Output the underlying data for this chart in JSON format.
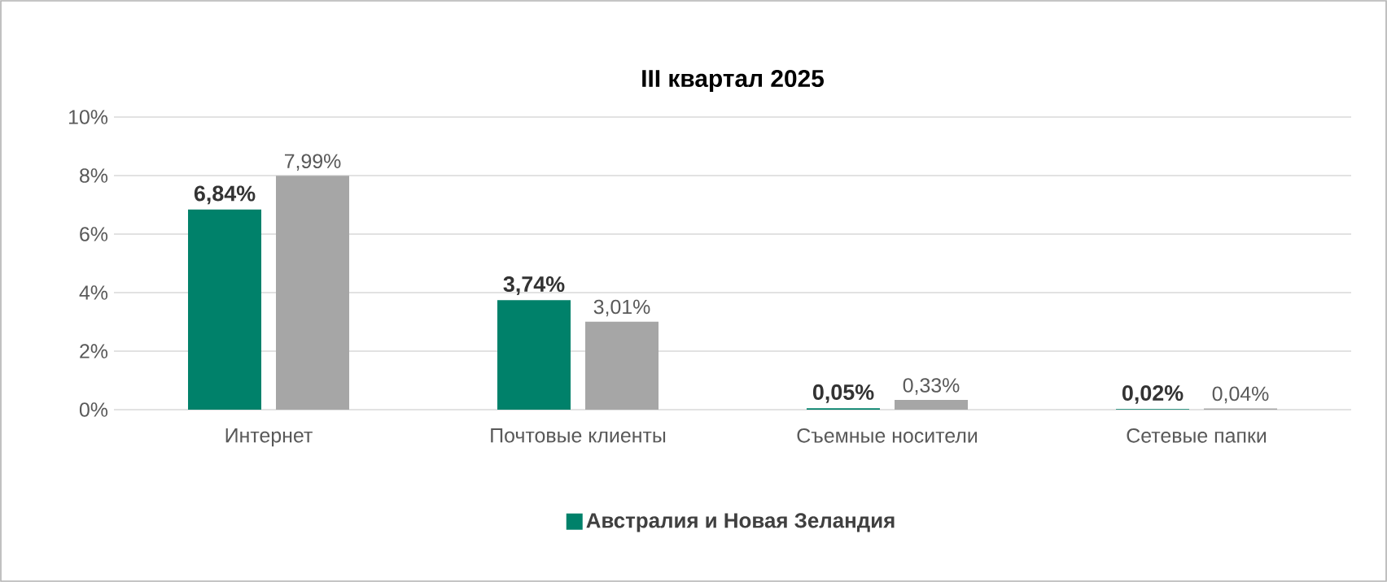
{
  "chart_data": {
    "type": "bar",
    "title": "III квартал 2025",
    "categories": [
      "Интернет",
      "Почтовые клиенты",
      "Съемные носители",
      "Сетевые папки"
    ],
    "series": [
      {
        "name": "Австралия и Новая Зеландия",
        "color": "#00816a",
        "values": [
          6.84,
          3.74,
          0.05,
          0.02
        ],
        "value_labels": [
          "6,84%",
          "3,74%",
          "0,05%",
          "0,02%"
        ]
      },
      {
        "color": "#a6a6a6",
        "values": [
          7.99,
          3.01,
          0.33,
          0.04
        ],
        "value_labels": [
          "7,99%",
          "3,01%",
          "0,33%",
          "0,04%"
        ]
      }
    ],
    "ylim": [
      0,
      10
    ],
    "yticks": [
      {
        "value": 0,
        "label": "0%"
      },
      {
        "value": 2,
        "label": "2%"
      },
      {
        "value": 4,
        "label": "4%"
      },
      {
        "value": 6,
        "label": "6%"
      },
      {
        "value": 8,
        "label": "8%"
      },
      {
        "value": 10,
        "label": "10%"
      }
    ],
    "grid": "y",
    "legend": "bottom"
  }
}
